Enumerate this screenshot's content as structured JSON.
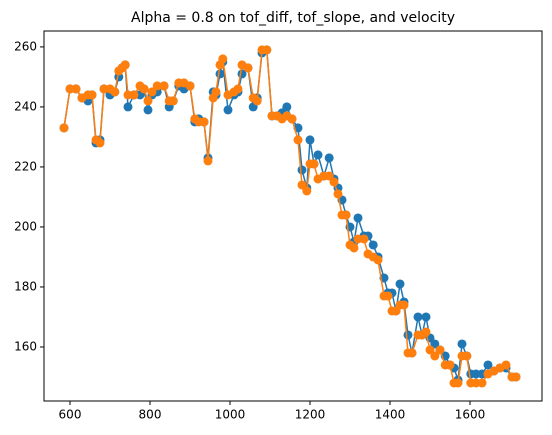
{
  "chart_data": {
    "type": "line",
    "title": "Alpha = 0.8 on tof_diff, tof_slope, and velocity",
    "x": [
      585,
      600,
      615,
      630,
      645,
      655,
      665,
      675,
      685,
      700,
      712,
      722,
      730,
      738,
      745,
      760,
      775,
      785,
      795,
      805,
      818,
      835,
      848,
      858,
      872,
      885,
      900,
      912,
      922,
      935,
      945,
      958,
      965,
      975,
      982,
      995,
      1010,
      1020,
      1030,
      1045,
      1058,
      1068,
      1080,
      1092,
      1105,
      1118,
      1130,
      1142,
      1155,
      1170,
      1180,
      1192,
      1200,
      1210,
      1220,
      1235,
      1248,
      1260,
      1270,
      1280,
      1290,
      1300,
      1310,
      1320,
      1335,
      1345,
      1358,
      1370,
      1385,
      1395,
      1405,
      1415,
      1425,
      1435,
      1445,
      1455,
      1470,
      1480,
      1490,
      1500,
      1512,
      1525,
      1538,
      1550,
      1560,
      1570,
      1580,
      1592,
      1602,
      1615,
      1630,
      1645,
      1660,
      1675,
      1690,
      1705,
      1715
    ],
    "series": [
      {
        "color": "#1f77b4",
        "values": [
          233,
          246,
          246,
          243,
          242,
          244,
          228,
          229,
          246,
          244,
          245,
          250,
          253,
          254,
          240,
          244,
          244,
          246,
          239,
          244,
          245,
          247,
          240,
          242,
          247,
          246,
          247,
          235,
          236,
          235,
          223,
          245,
          244,
          251,
          255,
          239,
          244,
          245,
          251,
          253,
          240,
          243,
          258,
          259,
          237,
          237,
          238,
          240,
          236,
          233,
          219,
          213,
          229,
          221,
          224,
          217,
          223,
          216,
          213,
          209,
          204,
          200,
          195,
          203,
          197,
          197,
          194,
          190,
          183,
          178,
          178,
          172,
          181,
          175,
          164,
          158,
          170,
          164,
          170,
          163,
          161,
          159,
          157,
          154,
          153,
          149,
          161,
          157,
          151,
          151,
          151,
          154,
          152,
          153,
          153,
          150,
          150
        ]
      },
      {
        "color": "#ff7f0e",
        "values": [
          233,
          246,
          246,
          243,
          244,
          244,
          229,
          228,
          246,
          246,
          245,
          252,
          253,
          254,
          244,
          244,
          247,
          246,
          242,
          245,
          247,
          247,
          242,
          242,
          248,
          248,
          247,
          236,
          235,
          235,
          222,
          243,
          245,
          254,
          256,
          244,
          245,
          246,
          254,
          253,
          243,
          242,
          259,
          259,
          237,
          237,
          236,
          237,
          236,
          229,
          214,
          212,
          221,
          221,
          216,
          217,
          217,
          215,
          211,
          204,
          204,
          194,
          193,
          196,
          196,
          191,
          190,
          189,
          177,
          177,
          172,
          172,
          174,
          174,
          158,
          158,
          164,
          164,
          165,
          159,
          157,
          159,
          154,
          154,
          148,
          148,
          157,
          157,
          148,
          148,
          148,
          151,
          152,
          153,
          154,
          150,
          150
        ]
      }
    ],
    "xlim": [
      535,
      1780
    ],
    "ylim": [
      142,
      265.3
    ],
    "xticks": [
      600,
      800,
      1000,
      1200,
      1400,
      1600
    ],
    "yticks": [
      160,
      180,
      200,
      220,
      240,
      260
    ],
    "grid": false
  }
}
